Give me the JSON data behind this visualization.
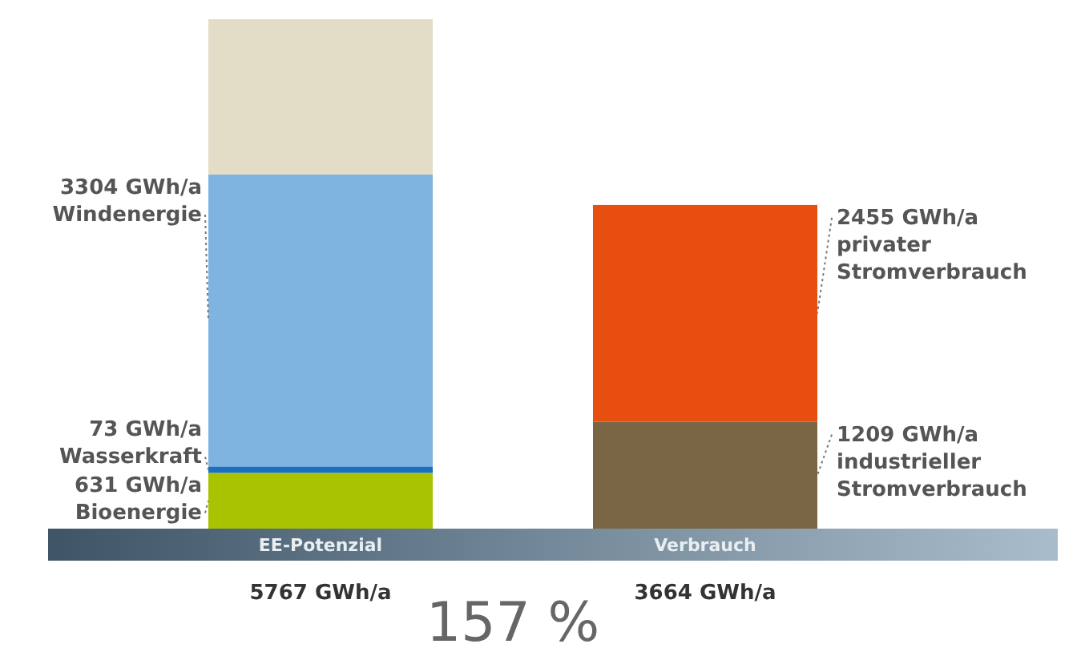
{
  "chart_data": {
    "type": "bar",
    "stacked": true,
    "categories": [
      "EE-Potenzial",
      "Verbrauch"
    ],
    "series": [
      {
        "name": "Bioenergie",
        "color": "#a8c400",
        "values": [
          631,
          null
        ],
        "value_labels": [
          "631 GWh/a",
          null
        ]
      },
      {
        "name": "Wasserkraft",
        "color": "#1a6fc0",
        "values": [
          73,
          null
        ],
        "value_labels": [
          "73 GWh/a",
          null
        ]
      },
      {
        "name": "Windenergie",
        "color": "#7fb3e0",
        "values": [
          3304,
          null
        ],
        "value_labels": [
          "3304 GWh/a",
          null
        ]
      },
      {
        "color": "#e3ddc8",
        "values": [
          1759,
          null
        ]
      },
      {
        "name": "industrieller Stromverbrauch",
        "color": "#7a6544",
        "values": [
          null,
          1209
        ],
        "value_labels": [
          null,
          "1209 GWh/a"
        ]
      },
      {
        "name": "privater Stromverbrauch",
        "color": "#e84e0f",
        "values": [
          null,
          2455
        ],
        "value_labels": [
          null,
          "2455 GWh/a"
        ]
      }
    ],
    "totals": [
      "5767 GWh/a",
      "3664 GWh/a"
    ],
    "annotations": [
      "157 %"
    ]
  }
}
